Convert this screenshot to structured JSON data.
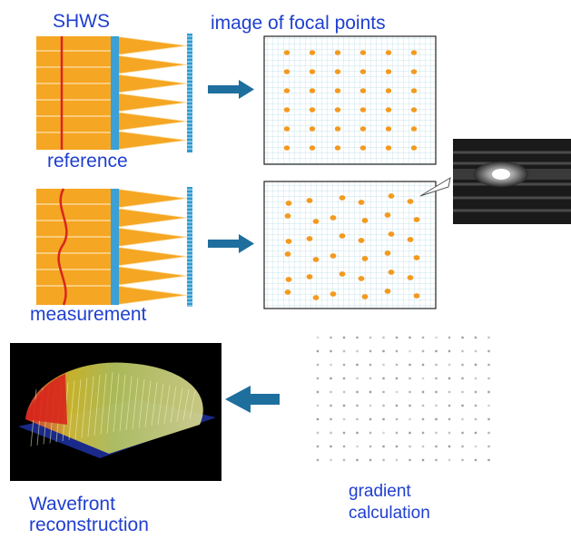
{
  "labels": {
    "shws": "SHWS",
    "focal_title": "image of focal points",
    "reference": "reference",
    "measurement": "measurement",
    "wavefront_line1": "Wavefront",
    "wavefront_line2": "reconstruction",
    "gradient_line1": "gradient",
    "gradient_line2": "calculation"
  },
  "colors": {
    "label_text": "#1f3fd0",
    "beam_orange": "#f5a623",
    "beam_line": "#fde3b0",
    "wavefront_red": "#d9261c",
    "lenslet_blue": "#3aa0d8",
    "arrow_blue": "#1e6e9e",
    "spot_orange": "#f39a1e",
    "grid_line": "#b9dbe6",
    "dot_gray": "#8a8a8a"
  },
  "spot_grid": {
    "rows": 6,
    "cols": 6
  },
  "gradient_grid": {
    "rows": 10,
    "cols": 14
  },
  "icons": [
    "right-arrow-icon",
    "left-arrow-icon",
    "callout-pointer-icon"
  ]
}
